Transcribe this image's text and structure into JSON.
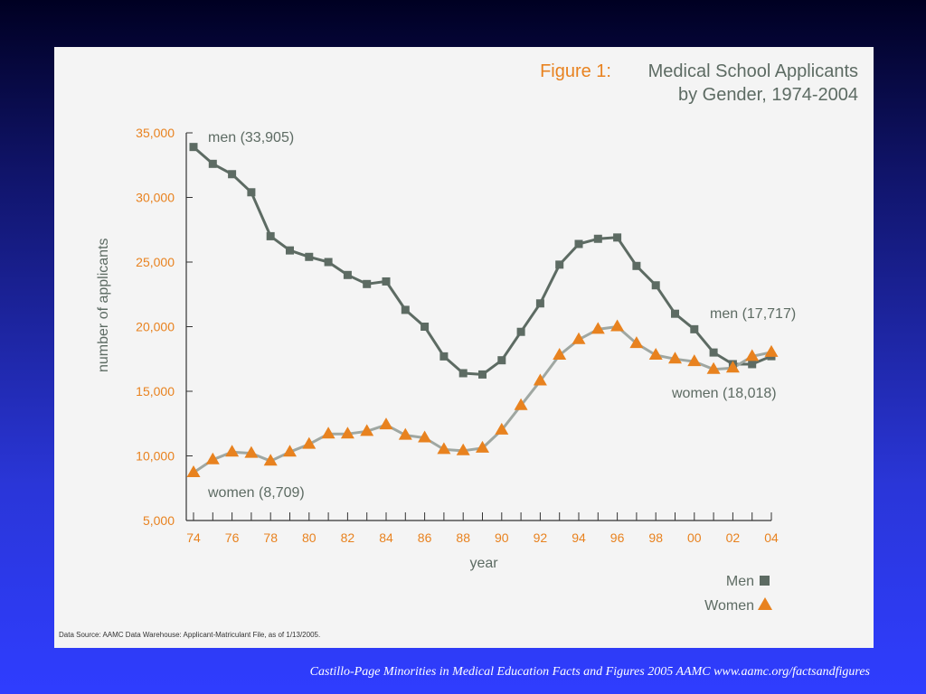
{
  "chart_data": {
    "type": "line",
    "title_prefix": "Figure 1:",
    "title_line1": "Medical School Applicants",
    "title_line2": "by Gender, 1974-2004",
    "xlabel": "year",
    "ylabel": "number of applicants",
    "ylim": [
      5000,
      35000
    ],
    "y_ticks": [
      "5,000",
      "10,000",
      "15,000",
      "20,000",
      "25,000",
      "30,000",
      "35,000"
    ],
    "x_tick_labels": [
      "74",
      "76",
      "78",
      "80",
      "82",
      "84",
      "86",
      "88",
      "90",
      "92",
      "94",
      "96",
      "98",
      "00",
      "02",
      "04"
    ],
    "x": [
      1974,
      1975,
      1976,
      1977,
      1978,
      1979,
      1980,
      1981,
      1982,
      1983,
      1984,
      1985,
      1986,
      1987,
      1988,
      1989,
      1990,
      1991,
      1992,
      1993,
      1994,
      1995,
      1996,
      1997,
      1998,
      1999,
      2000,
      2001,
      2002,
      2003,
      2004
    ],
    "series": [
      {
        "name": "Men",
        "color": "#5d6b63",
        "marker": "square",
        "values": [
          33905,
          32600,
          31800,
          30400,
          27000,
          25900,
          25400,
          25000,
          24000,
          23300,
          23500,
          21300,
          20000,
          17700,
          16400,
          16300,
          17400,
          19600,
          21800,
          24800,
          26400,
          26800,
          26900,
          24700,
          23200,
          21000,
          19800,
          18000,
          17100,
          17100,
          17717
        ]
      },
      {
        "name": "Women",
        "color": "#e8821f",
        "marker": "triangle",
        "values": [
          8709,
          9700,
          10300,
          10200,
          9600,
          10300,
          10900,
          11700,
          11700,
          11900,
          12400,
          11600,
          11400,
          10500,
          10400,
          10600,
          12000,
          13900,
          15800,
          17800,
          19000,
          19800,
          20000,
          18700,
          17800,
          17500,
          17300,
          16700,
          16800,
          17700,
          18018
        ]
      }
    ],
    "annotations": {
      "men_start": "men (33,905)",
      "men_end": "men (17,717)",
      "women_start": "women (8,709)",
      "women_end": "women (18,018)"
    },
    "legend": {
      "position": "bottom-right"
    },
    "source": "Data Source: AAMC Data Warehouse: Applicant-Matriculant File, as of 1/13/2005."
  },
  "caption": "Castillo-Page Minorities in Medical Education Facts and Figures 2005 AAMC www.aamc.org/factsandfigures"
}
